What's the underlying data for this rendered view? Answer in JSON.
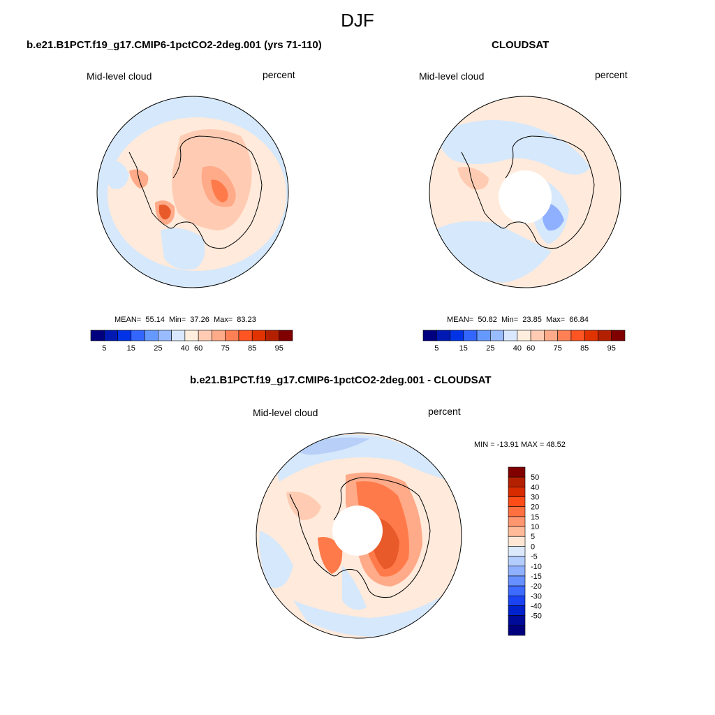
{
  "title": "DJF",
  "panels": [
    {
      "id": "model",
      "title": "b.e21.B1PCT.f19_g17.CMIP6-1pctCO2-2deg.001 (yrs 71-110)",
      "left_label": "Mid-level cloud",
      "right_label": "percent",
      "stats": {
        "mean_label": "MEAN=",
        "mean": "55.14",
        "min_label": "Min=",
        "min": "37.26",
        "max_label": "Max=",
        "max": "83.23"
      }
    },
    {
      "id": "obs",
      "title": "CLOUDSAT",
      "left_label": "Mid-level cloud",
      "right_label": "percent",
      "stats": {
        "mean_label": "MEAN=",
        "mean": "50.82",
        "min_label": "Min=",
        "min": "23.85",
        "max_label": "Max=",
        "max": "66.84"
      }
    },
    {
      "id": "diff",
      "title": "b.e21.B1PCT.f19_g17.CMIP6-1pctCO2-2deg.001 - CLOUDSAT",
      "left_label": "Mid-level cloud",
      "right_label": "percent",
      "stats_line": "MIN = -13.91 MAX =  48.52"
    }
  ],
  "colorbar_abs": {
    "colors": [
      "#00007f",
      "#0019b3",
      "#0033e6",
      "#3366ff",
      "#6699ff",
      "#99bbff",
      "#d9e8ff",
      "#ffeedd",
      "#ffccb3",
      "#ffaa88",
      "#ff8055",
      "#ff5522",
      "#e03300",
      "#b32000",
      "#800000"
    ],
    "tick_labels": [
      "5",
      "15",
      "25",
      "40",
      "60",
      "75",
      "85",
      "95"
    ]
  },
  "colorbar_diff": {
    "colors": [
      "#800000",
      "#b32000",
      "#d92b00",
      "#ff4d1a",
      "#ff7040",
      "#ff9670",
      "#ffbb99",
      "#ffe6d5",
      "#dce9fa",
      "#b3cdff",
      "#8fb0ff",
      "#6690ff",
      "#3d6bff",
      "#1a44f2",
      "#0022cc",
      "#000b99",
      "#00007f"
    ],
    "tick_labels": [
      "50",
      "40",
      "30",
      "20",
      "15",
      "10",
      "5",
      "0",
      "-5",
      "-10",
      "-15",
      "-20",
      "-30",
      "-40",
      "-50"
    ]
  },
  "map_colors": {
    "ocean_model": "#d6e8fb",
    "light_warm": "#ffeadb",
    "warm2": "#ffccb3",
    "warm3": "#ffaa88",
    "warm4": "#ff7a4a",
    "warm5": "#e85a2a",
    "cool2": "#b8d0f8",
    "cool3": "#8fb0ff",
    "cool4": "#6690ff"
  }
}
